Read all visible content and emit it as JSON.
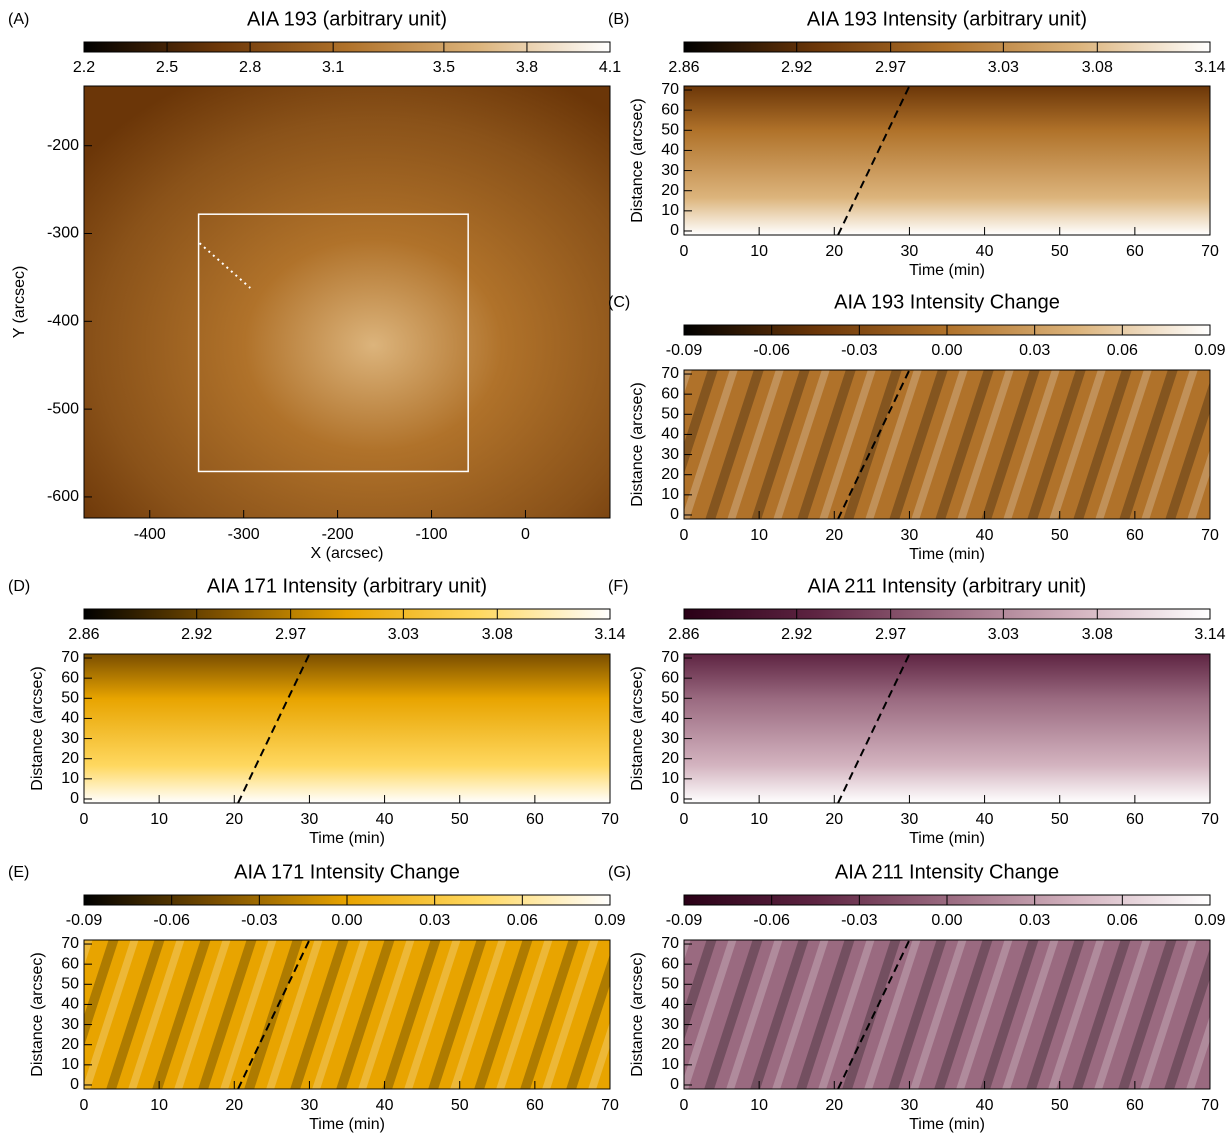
{
  "chart_data": [
    {
      "type": "image",
      "panel": "(A)",
      "title": "AIA 193 (arbitrary unit)",
      "colormap": [
        "#000000",
        "#6b3608",
        "#b0722a",
        "#dcb47c",
        "#ffffff"
      ],
      "clim": [
        2.2,
        4.1
      ],
      "cticks": [
        2.2,
        2.5,
        2.8,
        3.1,
        3.5,
        3.8,
        4.1
      ],
      "xlabel": "X (arcsec)",
      "ylabel": "Y (arcsec)",
      "xlim": [
        -470,
        90
      ],
      "xticks": [
        -400,
        -300,
        -200,
        -100,
        0
      ],
      "ylim": [
        -624,
        -132
      ],
      "yticks": [
        -200,
        -300,
        -400,
        -500,
        -600
      ],
      "box": {
        "x": [
          -348,
          -61
        ],
        "y": [
          -278,
          -571
        ]
      },
      "line": {
        "x": [
          -347,
          -293
        ],
        "y": [
          -311,
          -362
        ],
        "style": "dotted",
        "color": "#ffffff"
      }
    },
    {
      "type": "image",
      "panel": "(B)",
      "title": "AIA 193 Intensity (arbitrary unit)",
      "colormap": [
        "#000000",
        "#6b3608",
        "#b0722a",
        "#dcb47c",
        "#ffffff"
      ],
      "clim": [
        2.86,
        3.14
      ],
      "cticks": [
        2.86,
        2.92,
        2.97,
        3.03,
        3.08,
        3.14
      ],
      "xlabel": "Time (min)",
      "ylabel": "Distance (arcsec)",
      "xlim": [
        0,
        70
      ],
      "xticks": [
        0,
        10,
        20,
        30,
        40,
        50,
        60,
        70
      ],
      "ylim": [
        -2,
        72
      ],
      "yticks": [
        0,
        10,
        20,
        30,
        40,
        50,
        60,
        70
      ],
      "line": {
        "x": [
          20.5,
          30
        ],
        "y": [
          -2,
          72
        ],
        "style": "dashed",
        "color": "#000000"
      }
    },
    {
      "type": "image",
      "panel": "(C)",
      "title": "AIA 193 Intensity Change",
      "colormap": [
        "#000000",
        "#6b3608",
        "#b0722a",
        "#dcb47c",
        "#ffffff"
      ],
      "clim": [
        -0.09,
        0.09
      ],
      "cticks": [
        -0.09,
        -0.06,
        -0.03,
        {
          "value": 0,
          "label": "0.00"
        },
        0.03,
        0.06,
        0.09
      ],
      "xlabel": "Time (min)",
      "ylabel": "Distance (arcsec)",
      "xlim": [
        0,
        70
      ],
      "xticks": [
        0,
        10,
        20,
        30,
        40,
        50,
        60,
        70
      ],
      "ylim": [
        -2,
        72
      ],
      "yticks": [
        0,
        10,
        20,
        30,
        40,
        50,
        60,
        70
      ],
      "line": {
        "x": [
          20.5,
          30
        ],
        "y": [
          -2,
          72
        ],
        "style": "dashed",
        "color": "#000000"
      }
    },
    {
      "type": "image",
      "panel": "(D)",
      "title": "AIA 171 Intensity (arbitrary unit)",
      "colormap": [
        "#000000",
        "#7a4e00",
        "#e8a400",
        "#ffd860",
        "#ffffff"
      ],
      "clim": [
        2.86,
        3.14
      ],
      "cticks": [
        2.86,
        2.92,
        2.97,
        3.03,
        3.08,
        3.14
      ],
      "xlabel": "Time (min)",
      "ylabel": "Distance (arcsec)",
      "xlim": [
        0,
        70
      ],
      "xticks": [
        0,
        10,
        20,
        30,
        40,
        50,
        60,
        70
      ],
      "ylim": [
        -2,
        72
      ],
      "yticks": [
        0,
        10,
        20,
        30,
        40,
        50,
        60,
        70
      ],
      "line": {
        "x": [
          20.5,
          30
        ],
        "y": [
          -2,
          72
        ],
        "style": "dashed",
        "color": "#000000"
      }
    },
    {
      "type": "image",
      "panel": "(E)",
      "title": "AIA 171 Intensity Change",
      "colormap": [
        "#000000",
        "#7a4e00",
        "#e8a400",
        "#ffd860",
        "#ffffff"
      ],
      "clim": [
        -0.09,
        0.09
      ],
      "cticks": [
        -0.09,
        -0.06,
        -0.03,
        {
          "value": 0,
          "label": "0.00"
        },
        0.03,
        0.06,
        0.09
      ],
      "xlabel": "Time (min)",
      "ylabel": "Distance (arcsec)",
      "xlim": [
        0,
        70
      ],
      "xticks": [
        0,
        10,
        20,
        30,
        40,
        50,
        60,
        70
      ],
      "ylim": [
        -2,
        72
      ],
      "yticks": [
        0,
        10,
        20,
        30,
        40,
        50,
        60,
        70
      ],
      "line": {
        "x": [
          20.5,
          30
        ],
        "y": [
          -2,
          72
        ],
        "style": "dashed",
        "color": "#000000"
      }
    },
    {
      "type": "image",
      "panel": "(F)",
      "title": "AIA 211 Intensity (arbitrary unit)",
      "colormap": [
        "#2a0016",
        "#5e2442",
        "#9a6a80",
        "#d4b4c0",
        "#ffffff"
      ],
      "clim": [
        2.86,
        3.14
      ],
      "cticks": [
        2.86,
        2.92,
        2.97,
        3.03,
        3.08,
        3.14
      ],
      "xlabel": "Time (min)",
      "ylabel": "Distance (arcsec)",
      "xlim": [
        0,
        70
      ],
      "xticks": [
        0,
        10,
        20,
        30,
        40,
        50,
        60,
        70
      ],
      "ylim": [
        -2,
        72
      ],
      "yticks": [
        0,
        10,
        20,
        30,
        40,
        50,
        60,
        70
      ],
      "line": {
        "x": [
          20.5,
          30
        ],
        "y": [
          -2,
          72
        ],
        "style": "dashed",
        "color": "#000000"
      }
    },
    {
      "type": "image",
      "panel": "(G)",
      "title": "AIA 211 Intensity Change",
      "colormap": [
        "#2a0016",
        "#5e2442",
        "#9a6a80",
        "#d4b4c0",
        "#ffffff"
      ],
      "clim": [
        -0.09,
        0.09
      ],
      "cticks": [
        -0.09,
        -0.06,
        -0.03,
        {
          "value": 0,
          "label": "0.00"
        },
        0.03,
        0.06,
        0.09
      ],
      "xlabel": "Time (min)",
      "ylabel": "Distance (arcsec)",
      "xlim": [
        0,
        70
      ],
      "xticks": [
        0,
        10,
        20,
        30,
        40,
        50,
        60,
        70
      ],
      "ylim": [
        -2,
        72
      ],
      "yticks": [
        0,
        10,
        20,
        30,
        40,
        50,
        60,
        70
      ],
      "line": {
        "x": [
          20.5,
          30
        ],
        "y": [
          -2,
          72
        ],
        "style": "dashed",
        "color": "#000000"
      }
    }
  ]
}
